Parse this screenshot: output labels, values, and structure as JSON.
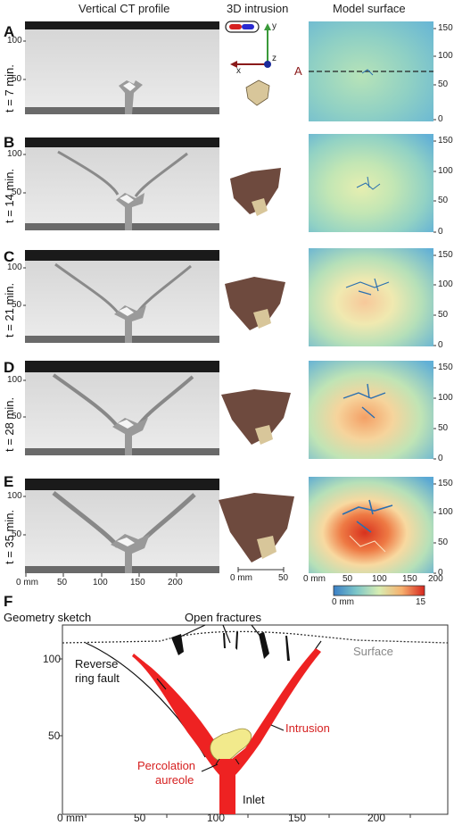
{
  "headers": {
    "ct": "Vertical CT profile",
    "intrusion": "3D intrusion",
    "surface": "Model surface"
  },
  "rows": [
    {
      "letter": "A",
      "time": "t = 7 min."
    },
    {
      "letter": "B",
      "time": "t = 14 min."
    },
    {
      "letter": "C",
      "time": "t = 21 min."
    },
    {
      "letter": "D",
      "time": "t = 28 min."
    },
    {
      "letter": "E",
      "time": "t = 35 min."
    }
  ],
  "ct_y_ticks": [
    "100",
    "50"
  ],
  "ct_x_ticks": [
    "0 mm",
    "50",
    "100",
    "150",
    "200"
  ],
  "intrusion_scale": {
    "zero": "0 mm",
    "fifty": "50"
  },
  "axes_labels": {
    "x": "x",
    "y": "y",
    "z": "z"
  },
  "section_marker": "A",
  "surface_y_ticks": [
    "150",
    "100",
    "50",
    "0"
  ],
  "surface_x_ticks": [
    "0 mm",
    "50",
    "100",
    "150",
    "200"
  ],
  "colorbar": {
    "min": "0 mm",
    "max": "15"
  },
  "sketch": {
    "letter": "F",
    "title": "Geometry sketch",
    "open_fractures": "Open fractures",
    "surface": "Surface",
    "reverse_ring_fault_1": "Reverse",
    "reverse_ring_fault_2": "ring fault",
    "intrusion": "Intrusion",
    "aureole_1": "Percolation",
    "aureole_2": "aureole",
    "inlet": "Inlet",
    "y_ticks": [
      "100",
      "50"
    ],
    "x_ticks": [
      "0 mm",
      "50",
      "100",
      "150",
      "200"
    ]
  },
  "colors": {
    "intrusion": "#ee2222",
    "aureole": "#f2ea8c",
    "fracture": "#111111",
    "surface_label": "#888888"
  }
}
